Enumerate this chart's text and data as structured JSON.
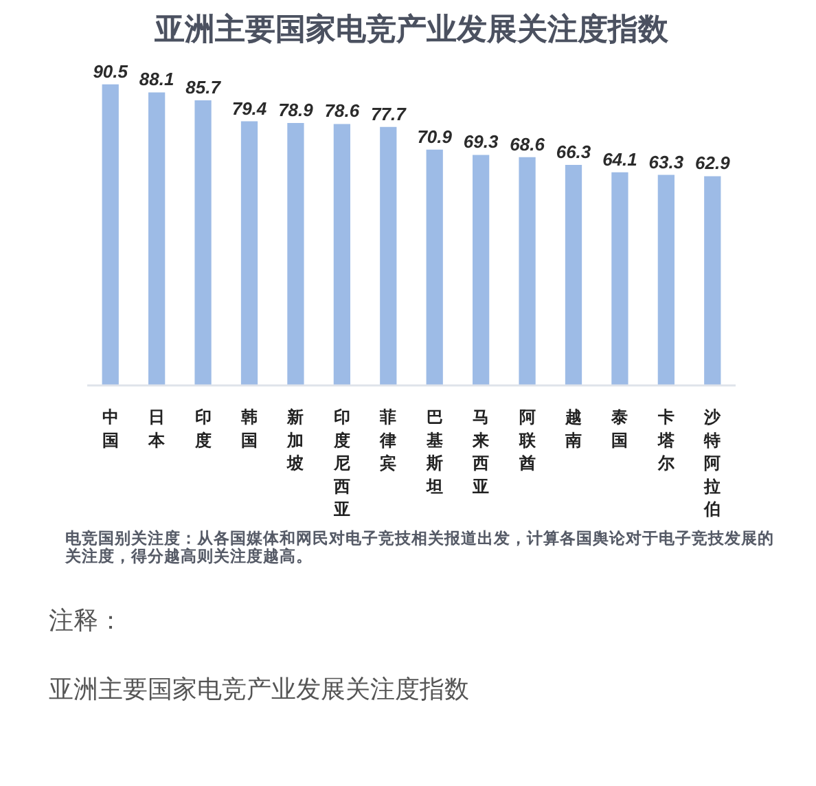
{
  "chart_data": {
    "type": "bar",
    "title": "亚洲主要国家电竞产业发展关注度指数",
    "categories": [
      "中国",
      "日本",
      "印度",
      "韩国",
      "新加坡",
      "印度尼西亚",
      "菲律宾",
      "巴基斯坦",
      "马来西亚",
      "阿联酋",
      "越南",
      "泰国",
      "卡塔尔",
      "沙特阿拉伯"
    ],
    "values": [
      90.5,
      88.1,
      85.7,
      79.4,
      78.9,
      78.6,
      77.7,
      70.9,
      69.3,
      68.6,
      66.3,
      64.1,
      63.3,
      62.9
    ],
    "color": "#9dbbe6",
    "data_labels": true,
    "annotations": [
      "电竞国别关注度：从各国媒体和网民对电子竞技相关报道出发，计算各国舆论对于电子竞技发展的关注度，得分越高则关注度越高。",
      "注释：",
      "亚洲主要国家电竞产业发展关注度指数"
    ]
  }
}
